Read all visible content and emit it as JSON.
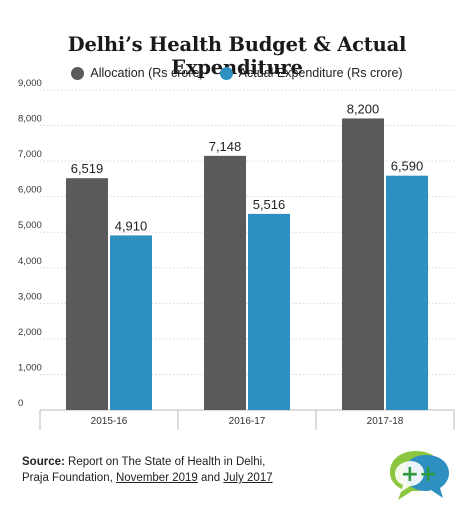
{
  "title": "Delhi’s Health Budget & Actual Expenditure",
  "legend": [
    {
      "label": "Allocation (Rs crore)",
      "color": "#5a5a5a"
    },
    {
      "label": "Actual Expenditure (Rs crore)",
      "color": "#2e8fc1"
    }
  ],
  "chart_data": {
    "type": "bar",
    "categories": [
      "2015-16",
      "2016-17",
      "2017-18"
    ],
    "series": [
      {
        "name": "Allocation (Rs crore)",
        "color": "#5a5a5a",
        "values": [
          6519,
          7148,
          8200
        ],
        "labels": [
          "6,519",
          "7,148",
          "8,200"
        ]
      },
      {
        "name": "Actual Expenditure (Rs crore)",
        "color": "#2e8fc1",
        "values": [
          4910,
          5516,
          6590
        ],
        "labels": [
          "4,910",
          "5,516",
          "6,590"
        ]
      }
    ],
    "ylim": [
      0,
      9000
    ],
    "yticks": [
      0,
      1000,
      2000,
      3000,
      4000,
      5000,
      6000,
      7000,
      8000,
      9000
    ],
    "ytick_labels": [
      "0",
      "1,000",
      "2,000",
      "3,000",
      "4,000",
      "5,000",
      "6,000",
      "7,000",
      "8,000",
      "9,000"
    ],
    "grid": true
  },
  "source": {
    "label": "Source:",
    "text1": " Report on The State of Health in Delhi,",
    "text2": "Praja Foundation, ",
    "link1": "November 2019",
    "and": " and ",
    "link2": "July 2017"
  }
}
